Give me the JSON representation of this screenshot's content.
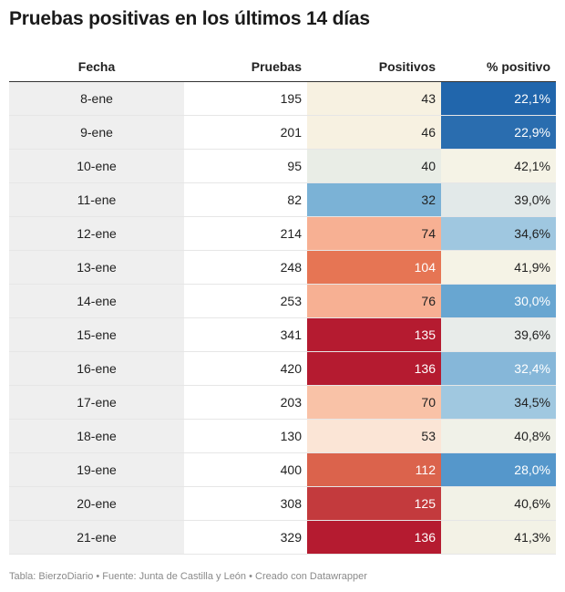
{
  "title": "Pruebas positivas en los últimos 14 días",
  "footer": "Tabla: BierzoDiario • Fuente: Junta de Castilla y León • Creado con Datawrapper",
  "chart_data": {
    "type": "table",
    "columns": [
      "Fecha",
      "Pruebas",
      "Positivos",
      "% positivo"
    ],
    "rows": [
      {
        "fecha": "8-ene",
        "pruebas": "195",
        "positivos": "43",
        "pct": "22,1%"
      },
      {
        "fecha": "9-ene",
        "pruebas": "201",
        "positivos": "46",
        "pct": "22,9%"
      },
      {
        "fecha": "10-ene",
        "pruebas": "95",
        "positivos": "40",
        "pct": "42,1%"
      },
      {
        "fecha": "11-ene",
        "pruebas": "82",
        "positivos": "32",
        "pct": "39,0%"
      },
      {
        "fecha": "12-ene",
        "pruebas": "214",
        "positivos": "74",
        "pct": "34,6%"
      },
      {
        "fecha": "13-ene",
        "pruebas": "248",
        "positivos": "104",
        "pct": "41,9%"
      },
      {
        "fecha": "14-ene",
        "pruebas": "253",
        "positivos": "76",
        "pct": "30,0%"
      },
      {
        "fecha": "15-ene",
        "pruebas": "341",
        "positivos": "135",
        "pct": "39,6%"
      },
      {
        "fecha": "16-ene",
        "pruebas": "420",
        "positivos": "136",
        "pct": "32,4%"
      },
      {
        "fecha": "17-ene",
        "pruebas": "203",
        "positivos": "70",
        "pct": "34,5%"
      },
      {
        "fecha": "18-ene",
        "pruebas": "130",
        "positivos": "53",
        "pct": "40,8%"
      },
      {
        "fecha": "19-ene",
        "pruebas": "400",
        "positivos": "112",
        "pct": "28,0%"
      },
      {
        "fecha": "20-ene",
        "pruebas": "308",
        "positivos": "125",
        "pct": "40,6%"
      },
      {
        "fecha": "21-ene",
        "pruebas": "329",
        "positivos": "136",
        "pct": "41,3%"
      }
    ]
  },
  "cell_colors": {
    "positivos": [
      "#f7f1e1",
      "#f7f1e1",
      "#e9ede6",
      "#7bb2d6",
      "#f7b093",
      "#e67554",
      "#f7b093",
      "#b51b30",
      "#b51b30",
      "#f9c2a7",
      "#fbe5d6",
      "#db634c",
      "#c33a3d",
      "#b51b30"
    ],
    "pct": [
      "#2166ac",
      "#2a6daf",
      "#f5f3e6",
      "#e2e9e9",
      "#9fc7e0",
      "#f5f3e6",
      "#68a6d1",
      "#e8ecea",
      "#86b7d9",
      "#a0c8e0",
      "#f0f1e8",
      "#5597cb",
      "#f2f2e7",
      "#f3f2e6"
    ],
    "light_text_positivos": [
      false,
      false,
      false,
      false,
      false,
      true,
      false,
      true,
      true,
      false,
      false,
      true,
      true,
      true
    ],
    "light_text_pct": [
      true,
      true,
      false,
      false,
      false,
      false,
      true,
      false,
      true,
      false,
      false,
      true,
      false,
      false
    ]
  }
}
